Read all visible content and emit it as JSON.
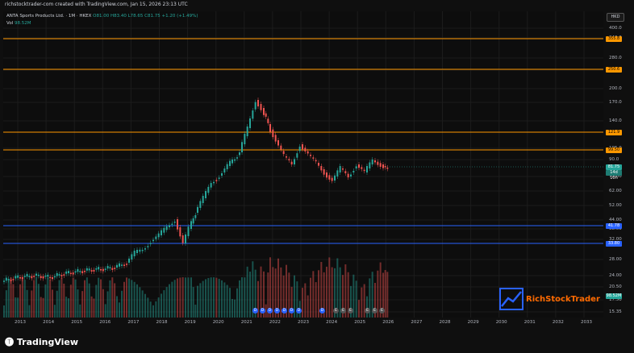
{
  "header": {
    "caption": "richstocktrader-com created with TradingView.com, Jan 15, 2026 23:13 UTC"
  },
  "legend": {
    "symbol": "ANTA Sports Products Ltd. · 1M · HKEX",
    "ohlc": "O81.00 H83.40 L78.65 C81.75 +1.20 (+1.49%)",
    "volume_label": "Vol",
    "volume_value": "98.52M"
  },
  "price_axis": {
    "currency": "HKD",
    "ticks": [
      "400.0",
      "340.0",
      "280.0",
      "240.0",
      "200.0",
      "170.0",
      "140.0",
      "105.0",
      "90.0",
      "72.00",
      "62.00",
      "52.00",
      "44.00",
      "38.00",
      "32.00",
      "28.00",
      "24.00",
      "20.50",
      "17.50",
      "15.35"
    ],
    "levels": [
      {
        "value": "355.8",
        "color": "#ff9800"
      },
      {
        "value": "250.6",
        "color": "#ff9800"
      },
      {
        "value": "121.9",
        "color": "#ff9800"
      },
      {
        "value": "99.50",
        "color": "#ff9800"
      },
      {
        "value": "41.78",
        "color": "#2962ff"
      },
      {
        "value": "33.80",
        "color": "#2962ff"
      }
    ],
    "last_price": "81.75",
    "countdown": "14d 10h",
    "volume_tag": "98.52M"
  },
  "time_axis": {
    "years": [
      "2013",
      "2014",
      "2015",
      "2016",
      "2017",
      "2018",
      "2019",
      "2020",
      "2021",
      "2022",
      "2023",
      "2024",
      "2025",
      "2026",
      "2027",
      "2028",
      "2029",
      "2030",
      "2031",
      "2032",
      "2033"
    ]
  },
  "events": [
    "D",
    "D",
    "D",
    "D",
    "D",
    "D",
    "D",
    "D",
    "E",
    "E",
    "E",
    "E",
    "E",
    "E"
  ],
  "branding": {
    "watermark": "RichStockTrader",
    "footer": "TradingView"
  },
  "colors": {
    "up": "#26a69a",
    "down": "#ef5350",
    "support": "#2962ff",
    "resistance": "#ff9800"
  }
}
